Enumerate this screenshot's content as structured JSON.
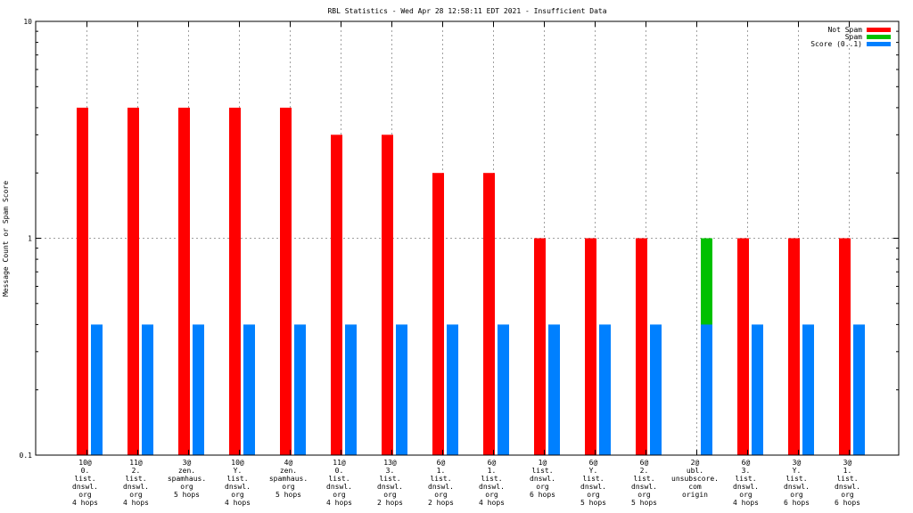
{
  "chart_data": {
    "type": "bar",
    "title": "RBL Statistics - Wed Apr 28 12:58:11 EDT 2021 - Insufficient Data",
    "ylabel": "Message Count or Spam Score",
    "xlabel": "",
    "yscale": "log",
    "ylim": [
      0.1,
      10
    ],
    "yticks": [
      "10",
      "1",
      "0.1"
    ],
    "grid": true,
    "legend_position": "top-right",
    "categories": [
      [
        "10@",
        "0.",
        "list.",
        "dnswl.",
        "org",
        "4 hops"
      ],
      [
        "11@",
        "2.",
        "list.",
        "dnswl.",
        "org",
        "4 hops"
      ],
      [
        "3@",
        "zen.",
        "spamhaus.",
        "org",
        "5 hops"
      ],
      [
        "10@",
        "Y.",
        "list.",
        "dnswl.",
        "org",
        "4 hops"
      ],
      [
        "4@",
        "zen.",
        "spamhaus.",
        "org",
        "5 hops"
      ],
      [
        "11@",
        "0.",
        "list.",
        "dnswl.",
        "org",
        "4 hops"
      ],
      [
        "13@",
        "3.",
        "list.",
        "dnswl.",
        "org",
        "2 hops"
      ],
      [
        "6@",
        "1.",
        "list.",
        "dnswl.",
        "org",
        "2 hops"
      ],
      [
        "6@",
        "1.",
        "list.",
        "dnswl.",
        "org",
        "4 hops"
      ],
      [
        "1@",
        "list.",
        "dnswl.",
        "org",
        "6 hops"
      ],
      [
        "6@",
        "Y.",
        "list.",
        "dnswl.",
        "org",
        "5 hops"
      ],
      [
        "6@",
        "2.",
        "list.",
        "dnswl.",
        "org",
        "5 hops"
      ],
      [
        "2@",
        "ubl.",
        "unsubscore.",
        "com",
        "origin"
      ],
      [
        "6@",
        "3.",
        "list.",
        "dnswl.",
        "org",
        "4 hops"
      ],
      [
        "3@",
        "Y.",
        "list.",
        "dnswl.",
        "org",
        "6 hops"
      ],
      [
        "3@",
        "1.",
        "list.",
        "dnswl.",
        "org",
        "6 hops"
      ]
    ],
    "series": [
      {
        "name": "Not Spam",
        "color": "#ff0000",
        "values": [
          4,
          4,
          4,
          4,
          4,
          3,
          3,
          2,
          2,
          1,
          1,
          1,
          null,
          1,
          1,
          1
        ]
      },
      {
        "name": "Spam",
        "color": "#00c000",
        "values": [
          null,
          null,
          null,
          null,
          null,
          null,
          null,
          null,
          null,
          null,
          null,
          null,
          1,
          null,
          null,
          null
        ]
      },
      {
        "name": "Score (0..1)",
        "color": "#0080ff",
        "values": [
          0.4,
          0.4,
          0.4,
          0.4,
          0.4,
          0.4,
          0.4,
          0.4,
          0.4,
          0.4,
          0.4,
          0.4,
          0.4,
          0.4,
          0.4,
          0.4
        ]
      }
    ]
  }
}
